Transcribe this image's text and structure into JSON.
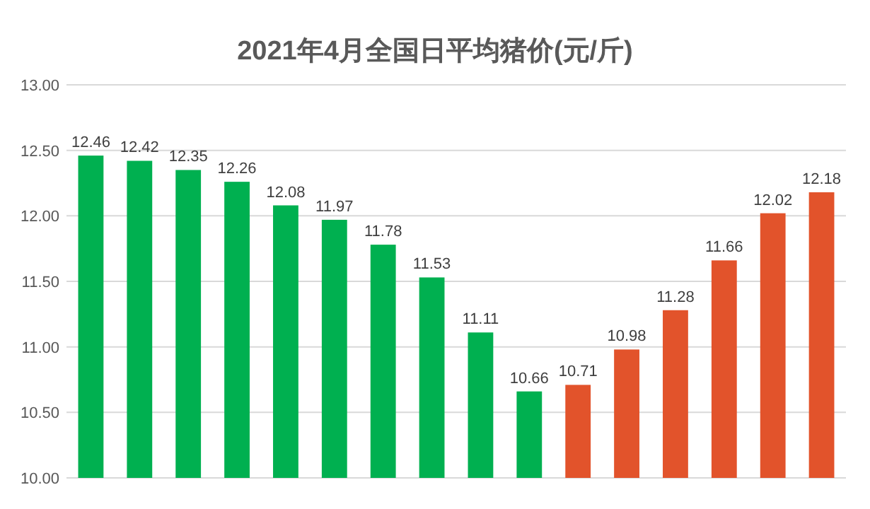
{
  "chart_data": {
    "type": "bar",
    "title": "2021年4月全国日平均猪价(元/斤)",
    "categories": [
      null,
      null,
      null,
      null,
      null,
      null,
      null,
      null,
      null,
      null,
      null,
      null,
      null,
      null,
      null,
      null
    ],
    "values": [
      12.46,
      12.42,
      12.35,
      12.26,
      12.08,
      11.97,
      11.78,
      11.53,
      11.11,
      10.66,
      10.71,
      10.98,
      11.28,
      11.66,
      12.02,
      12.18
    ],
    "colors": [
      "#00b050",
      "#00b050",
      "#00b050",
      "#00b050",
      "#00b050",
      "#00b050",
      "#00b050",
      "#00b050",
      "#00b050",
      "#00b050",
      "#e2532b",
      "#e2532b",
      "#e2532b",
      "#e2532b",
      "#e2532b",
      "#e2532b"
    ],
    "ylim": [
      10,
      13
    ],
    "yticks": [
      {
        "value": 10,
        "label": "10.00"
      },
      {
        "value": 10.5,
        "label": "10.50"
      },
      {
        "value": 11,
        "label": "11.00"
      },
      {
        "value": 11.5,
        "label": "11.50"
      },
      {
        "value": 12,
        "label": "12.00"
      },
      {
        "value": 12.5,
        "label": "12.50"
      },
      {
        "value": 13,
        "label": "13.00"
      }
    ],
    "grid": "y",
    "data_labels": true
  }
}
